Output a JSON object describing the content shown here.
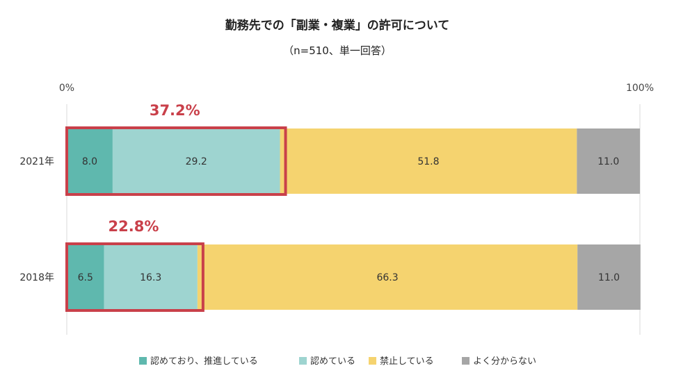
{
  "chart_data": {
    "type": "bar",
    "orientation": "horizontal",
    "stacked": true,
    "title": "勤務先での「副業・複業」の許可について",
    "subtitle": "（n=510、単一回答）",
    "categories": [
      "2021年",
      "2018年"
    ],
    "series": [
      {
        "name": "認めており、推進している",
        "color": "#5fb8ae",
        "values": [
          8.0,
          6.5
        ]
      },
      {
        "name": "認めている",
        "color": "#9ed4d0",
        "values": [
          29.2,
          16.3
        ]
      },
      {
        "name": "禁止している",
        "color": "#f5d36f",
        "values": [
          51.8,
          66.3
        ]
      },
      {
        "name": "よく分からない",
        "color": "#a6a6a6",
        "values": [
          11.0,
          11.0
        ]
      }
    ],
    "value_labels": [
      [
        "8.0",
        "29.2",
        "51.8",
        "11.0"
      ],
      [
        "6.5",
        "16.3",
        "66.3",
        "11.0"
      ]
    ],
    "highlight_totals": [
      "37.2%",
      "22.8%"
    ],
    "highlight_color": "#c9404a",
    "xlim": [
      0,
      100
    ],
    "x_tick_labels": [
      "0%",
      "100%"
    ],
    "legend_position": "bottom"
  }
}
